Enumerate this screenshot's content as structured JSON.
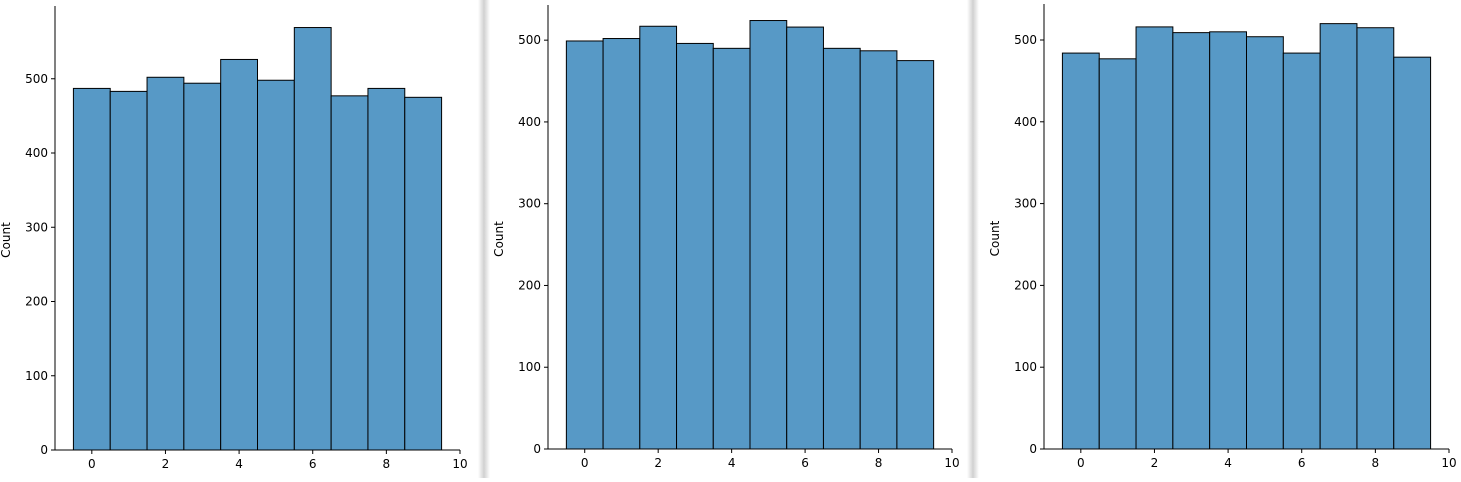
{
  "chart_data": [
    {
      "type": "bar",
      "histogram": true,
      "title": "",
      "xlabel": "",
      "ylabel": "Count",
      "bin_edges": [
        -0.5,
        0.5,
        1.5,
        2.5,
        3.5,
        4.5,
        5.5,
        6.5,
        7.5,
        8.5,
        9.5
      ],
      "values": [
        487,
        483,
        502,
        494,
        526,
        498,
        569,
        477,
        487,
        475
      ],
      "xlim": [
        -1,
        10
      ],
      "ylim": [
        0,
        598
      ],
      "xticks": [
        "0",
        "2",
        "4",
        "6",
        "8",
        "10"
      ],
      "yticks": [
        "0",
        "100",
        "200",
        "300",
        "400",
        "500"
      ],
      "bar_color": "#5799c6",
      "edge_color": "#000000",
      "grid": false
    },
    {
      "type": "bar",
      "histogram": true,
      "title": "",
      "xlabel": "",
      "ylabel": "Count",
      "bin_edges": [
        -0.5,
        0.5,
        1.5,
        2.5,
        3.5,
        4.5,
        5.5,
        6.5,
        7.5,
        8.5,
        9.5
      ],
      "values": [
        499,
        502,
        517,
        496,
        490,
        524,
        516,
        490,
        487,
        475
      ],
      "xlim": [
        -1,
        10
      ],
      "ylim": [
        0,
        543
      ],
      "xticks": [
        "0",
        "2",
        "4",
        "6",
        "8",
        "10"
      ],
      "yticks": [
        "0",
        "100",
        "200",
        "300",
        "400",
        "500"
      ],
      "bar_color": "#5799c6",
      "edge_color": "#000000",
      "grid": false
    },
    {
      "type": "bar",
      "histogram": true,
      "title": "",
      "xlabel": "",
      "ylabel": "Count",
      "bin_edges": [
        -0.5,
        0.5,
        1.5,
        2.5,
        3.5,
        4.5,
        5.5,
        6.5,
        7.5,
        8.5,
        9.5
      ],
      "values": [
        484,
        477,
        516,
        509,
        510,
        504,
        484,
        520,
        515,
        479
      ],
      "xlim": [
        -1,
        10
      ],
      "ylim": [
        0,
        544
      ],
      "xticks": [
        "0",
        "2",
        "4",
        "6",
        "8",
        "10"
      ],
      "yticks": [
        "0",
        "100",
        "200",
        "300",
        "400",
        "500"
      ],
      "bar_color": "#5799c6",
      "edge_color": "#000000",
      "grid": false
    }
  ]
}
